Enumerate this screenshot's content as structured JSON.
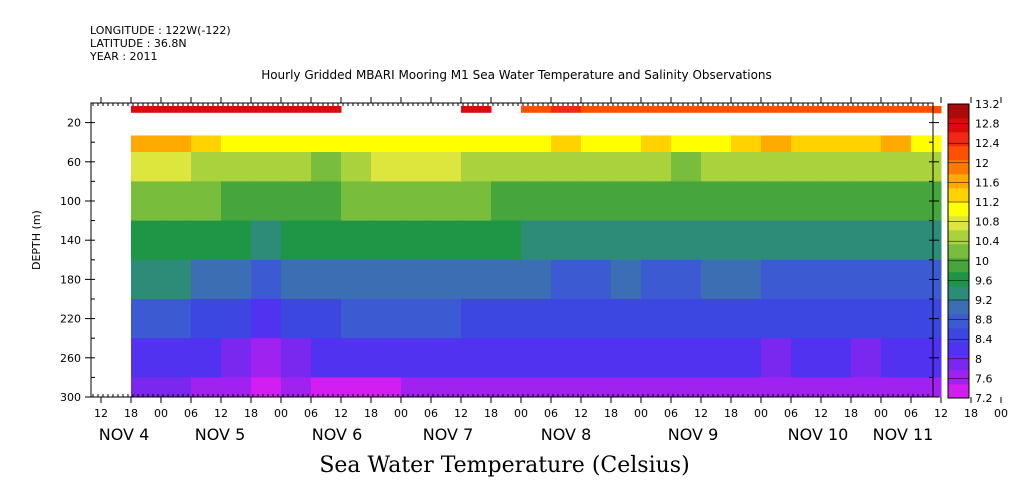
{
  "header": {
    "longitude": "LONGITUDE : 122W(-122)",
    "latitude": "LATITUDE : 36.8N",
    "year": "YEAR : 2011"
  },
  "chart_data": {
    "type": "heatmap",
    "title": "Hourly Gridded MBARI Mooring M1 Sea Water Temperature and Salinity Observations",
    "ylabel": "DEPTH (m)",
    "xlabel": "Sea Water Temperature (Celsius)",
    "ylim": [
      300,
      0
    ],
    "y_ticks": [
      20,
      60,
      100,
      140,
      180,
      220,
      260,
      300
    ],
    "x_hour_ticks": [
      "12",
      "18",
      "00",
      "06",
      "12",
      "18",
      "00",
      "06",
      "12",
      "18",
      "00",
      "06",
      "12",
      "18",
      "00",
      "06",
      "12",
      "18",
      "00",
      "06",
      "12",
      "18",
      "00",
      "06",
      "12",
      "18",
      "00",
      "06",
      "12",
      "18",
      "00",
      "06"
    ],
    "x_day_labels": [
      {
        "label": "NOV  4",
        "hour": 0
      },
      {
        "label": "NOV  5",
        "hour": 24
      },
      {
        "label": "NOV  6",
        "hour": 48
      },
      {
        "label": "NOV  7",
        "hour": 72
      },
      {
        "label": "NOV  8",
        "hour": 96
      },
      {
        "label": "NOV  9",
        "hour": 120
      },
      {
        "label": "NOV 10",
        "hour": 144
      },
      {
        "label": "NOV 11",
        "hour": 168
      }
    ],
    "colorbar": {
      "levels": [
        7.2,
        7.6,
        8,
        8.4,
        8.8,
        9.2,
        9.6,
        10,
        10.4,
        10.8,
        11.2,
        11.6,
        12,
        12.4,
        12.8,
        13.2
      ],
      "colors": [
        "#d21ef0",
        "#a022f0",
        "#7a28f0",
        "#5032f0",
        "#3c46e0",
        "#3c5ad2",
        "#3c6eb4",
        "#2d8c78",
        "#1e9646",
        "#46a53c",
        "#78be3c",
        "#aad23c",
        "#dce63c",
        "#ffff00",
        "#ffd200",
        "#ffaa00",
        "#ff7800",
        "#ff5000",
        "#f02814",
        "#dc0a0a",
        "#aa0a0a"
      ]
    },
    "series": [
      {
        "depth": 10,
        "values": [
          null,
          13.0,
          13.0,
          13.0,
          13.0,
          13.0,
          12.9,
          12.9,
          null,
          null,
          null,
          null,
          12.8,
          null,
          12.4,
          12.5,
          12.4,
          12.4,
          12.3,
          12.4,
          12.3,
          12.4,
          12.3,
          12.4,
          12.3,
          12.3,
          12.3,
          12.3
        ]
      },
      {
        "depth": 40,
        "values": [
          null,
          11.6,
          11.8,
          11.4,
          11.2,
          11.1,
          11.2,
          11.1,
          11.1,
          11.0,
          11.0,
          11.0,
          11.0,
          11.1,
          11.2,
          11.4,
          11.2,
          11.2,
          11.3,
          11.2,
          11.2,
          11.3,
          11.6,
          11.3,
          11.4,
          11.5,
          11.6,
          11.2
        ]
      },
      {
        "depth": 60,
        "values": [
          null,
          10.8,
          10.9,
          10.6,
          10.5,
          10.4,
          10.5,
          10.3,
          10.6,
          10.7,
          10.7,
          10.7,
          10.6,
          10.5,
          10.6,
          10.5,
          10.4,
          10.5,
          10.4,
          10.3,
          10.6,
          10.5,
          10.4,
          10.4,
          10.5,
          10.4,
          10.5,
          10.4
        ]
      },
      {
        "depth": 100,
        "values": [
          null,
          10.2,
          10.3,
          10.1,
          10.0,
          9.9,
          10.0,
          10.0,
          10.1,
          10.2,
          10.2,
          10.2,
          10.1,
          10.0,
          10.0,
          9.9,
          9.9,
          10.0,
          9.9,
          9.8,
          10.0,
          10.0,
          9.9,
          9.9,
          10.0,
          9.9,
          10.0,
          9.9
        ]
      },
      {
        "depth": 140,
        "values": [
          null,
          9.7,
          9.7,
          9.6,
          9.5,
          9.4,
          9.5,
          9.5,
          9.6,
          9.6,
          9.6,
          9.6,
          9.6,
          9.5,
          9.4,
          9.4,
          9.3,
          9.4,
          9.3,
          9.3,
          9.4,
          9.4,
          9.3,
          9.3,
          9.4,
          9.3,
          9.4,
          9.3
        ]
      },
      {
        "depth": 180,
        "values": [
          null,
          9.2,
          9.2,
          9.1,
          9.0,
          8.8,
          8.9,
          9.0,
          9.1,
          9.1,
          9.1,
          9.1,
          9.0,
          9.0,
          8.9,
          8.8,
          8.8,
          8.9,
          8.8,
          8.8,
          8.9,
          8.9,
          8.7,
          8.8,
          8.8,
          8.7,
          8.8,
          8.8
        ]
      },
      {
        "depth": 220,
        "values": [
          null,
          8.7,
          8.7,
          8.5,
          8.3,
          8.2,
          8.4,
          8.5,
          8.6,
          8.6,
          8.6,
          8.6,
          8.5,
          8.5,
          8.4,
          8.4,
          8.4,
          8.4,
          8.4,
          8.4,
          8.4,
          8.4,
          8.3,
          8.4,
          8.4,
          8.3,
          8.4,
          8.4
        ]
      },
      {
        "depth": 260,
        "values": [
          null,
          8.2,
          8.2,
          8.0,
          7.8,
          7.6,
          7.8,
          8.0,
          8.0,
          8.0,
          8.0,
          8.0,
          8.0,
          8.0,
          8.0,
          8.0,
          8.0,
          8.0,
          8.0,
          8.0,
          8.0,
          8.0,
          7.9,
          8.0,
          8.0,
          7.9,
          8.0,
          8.0
        ]
      },
      {
        "depth": 300,
        "values": [
          null,
          7.8,
          7.7,
          7.6,
          7.4,
          7.2,
          7.4,
          7.3,
          7.3,
          7.3,
          7.4,
          7.5,
          7.5,
          7.6,
          7.5,
          7.6,
          7.6,
          7.5,
          7.6,
          7.6,
          7.6,
          7.6,
          7.5,
          7.6,
          7.6,
          7.6,
          7.6,
          7.6
        ]
      }
    ],
    "x_start_hour": -12,
    "x_step_hours": 6
  }
}
